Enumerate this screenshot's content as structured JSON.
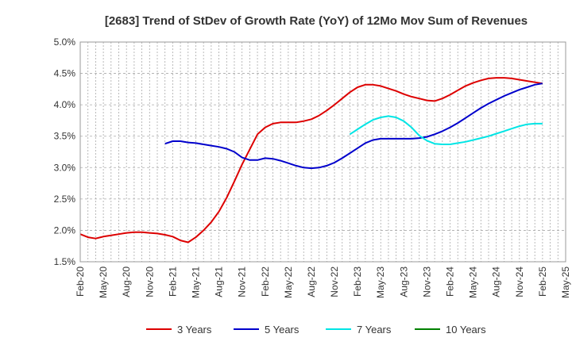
{
  "chart_data": {
    "type": "line",
    "title": "[2683]  Trend of StDev of Growth Rate (YoY) of 12Mo Mov Sum of Revenues",
    "xlabel": "",
    "ylabel": "",
    "x_ticks": [
      "Feb-20",
      "May-20",
      "Aug-20",
      "Nov-20",
      "Feb-21",
      "May-21",
      "Aug-21",
      "Nov-21",
      "Feb-22",
      "May-22",
      "Aug-22",
      "Nov-22",
      "Feb-23",
      "May-23",
      "Aug-23",
      "Nov-23",
      "Feb-24",
      "May-24",
      "Aug-24",
      "Nov-24",
      "Feb-25",
      "May-25"
    ],
    "y_ticks": [
      "1.5%",
      "2.0%",
      "2.5%",
      "3.0%",
      "3.5%",
      "4.0%",
      "4.5%",
      "5.0%"
    ],
    "ylim": [
      1.5,
      5.0
    ],
    "x_range_months": [
      0,
      63
    ],
    "x_months_per_tick": 3,
    "grid": true,
    "legend_position": "bottom",
    "series": [
      {
        "name": "3 Years",
        "color": "#dd0000",
        "x": [
          0,
          1,
          2,
          3,
          4,
          5,
          6,
          7,
          8,
          9,
          10,
          11,
          12,
          13,
          14,
          15,
          16,
          17,
          18,
          19,
          20,
          21,
          22,
          23,
          24,
          25,
          26,
          27,
          28,
          29,
          30,
          31,
          32,
          33,
          34,
          35,
          36,
          37,
          38,
          39,
          40,
          41,
          42,
          43,
          44,
          45,
          46,
          47,
          48,
          49,
          50,
          51,
          52,
          53,
          54,
          55,
          56,
          57,
          58,
          59,
          60
        ],
        "values": [
          1.94,
          1.89,
          1.87,
          1.9,
          1.92,
          1.94,
          1.96,
          1.97,
          1.97,
          1.96,
          1.95,
          1.93,
          1.9,
          1.84,
          1.81,
          1.89,
          2.0,
          2.13,
          2.3,
          2.52,
          2.78,
          3.05,
          3.29,
          3.53,
          3.64,
          3.7,
          3.72,
          3.72,
          3.72,
          3.74,
          3.77,
          3.83,
          3.91,
          4.0,
          4.1,
          4.2,
          4.28,
          4.32,
          4.32,
          4.3,
          4.26,
          4.22,
          4.17,
          4.13,
          4.1,
          4.07,
          4.06,
          4.1,
          4.16,
          4.23,
          4.3,
          4.35,
          4.39,
          4.42,
          4.43,
          4.43,
          4.42,
          4.4,
          4.38,
          4.36,
          4.34
        ]
      },
      {
        "name": "5 Years",
        "color": "#0000cc",
        "x": [
          11,
          12,
          13,
          14,
          15,
          16,
          17,
          18,
          19,
          20,
          21,
          22,
          23,
          24,
          25,
          26,
          27,
          28,
          29,
          30,
          31,
          32,
          33,
          34,
          35,
          36,
          37,
          38,
          39,
          40,
          41,
          42,
          43,
          44,
          45,
          46,
          47,
          48,
          49,
          50,
          51,
          52,
          53,
          54,
          55,
          56,
          57,
          58,
          59,
          60
        ],
        "values": [
          3.38,
          3.42,
          3.42,
          3.4,
          3.39,
          3.37,
          3.35,
          3.33,
          3.3,
          3.25,
          3.16,
          3.12,
          3.12,
          3.15,
          3.14,
          3.11,
          3.07,
          3.03,
          3.0,
          2.99,
          3.0,
          3.03,
          3.08,
          3.15,
          3.23,
          3.31,
          3.39,
          3.44,
          3.46,
          3.46,
          3.46,
          3.46,
          3.46,
          3.47,
          3.49,
          3.53,
          3.58,
          3.64,
          3.71,
          3.79,
          3.87,
          3.95,
          4.02,
          4.08,
          4.14,
          4.19,
          4.24,
          4.28,
          4.32,
          4.34
        ]
      },
      {
        "name": "7 Years",
        "color": "#00e5e5",
        "x": [
          35,
          36,
          37,
          38,
          39,
          40,
          41,
          42,
          43,
          44,
          45,
          46,
          47,
          48,
          49,
          50,
          51,
          52,
          53,
          54,
          55,
          56,
          57,
          58,
          59,
          60
        ],
        "values": [
          3.53,
          3.61,
          3.69,
          3.76,
          3.8,
          3.82,
          3.8,
          3.74,
          3.64,
          3.51,
          3.43,
          3.38,
          3.37,
          3.37,
          3.39,
          3.41,
          3.44,
          3.47,
          3.5,
          3.54,
          3.58,
          3.62,
          3.66,
          3.69,
          3.7,
          3.7
        ]
      },
      {
        "name": "10 Years",
        "color": "#008000",
        "x": [],
        "values": []
      }
    ]
  }
}
